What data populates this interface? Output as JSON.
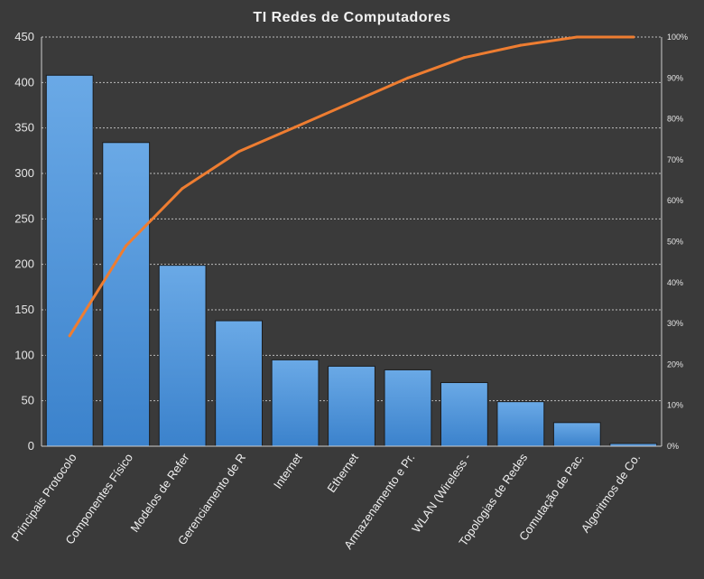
{
  "chart_data": {
    "type": "bar",
    "title": "TI Redes de Computadores",
    "categories": [
      "Principais Protocolo",
      "Componentes Físico",
      "Modelos de Refer",
      "Gerenciamento de R",
      "Internet",
      "Ethernet",
      "Armazenamento  e Pr.",
      "WLAN (Wireless -",
      "Topologias de Redes",
      "Comutação de Pac.",
      "Algoritmos de Co."
    ],
    "values": [
      408,
      334,
      199,
      138,
      95,
      88,
      84,
      70,
      49,
      26,
      3
    ],
    "cumulative_percent": [
      27,
      49,
      63,
      72,
      78,
      84,
      90,
      95,
      98,
      100,
      100
    ],
    "ylim": [
      0,
      450
    ],
    "y_ticks": [
      "0",
      "50",
      "100",
      "150",
      "200",
      "250",
      "300",
      "350",
      "400",
      "450"
    ],
    "y2lim": [
      0,
      100
    ],
    "y2_ticks": [
      "0%",
      "10%",
      "20%",
      "30%",
      "40%",
      "50%",
      "60%",
      "70%",
      "80%",
      "90%",
      "100%"
    ],
    "xlabel": "",
    "ylabel": "",
    "grid": true,
    "colors": {
      "background": "#3a3a3a",
      "bar": "#4a90d9",
      "line": "#ee7d31"
    }
  }
}
